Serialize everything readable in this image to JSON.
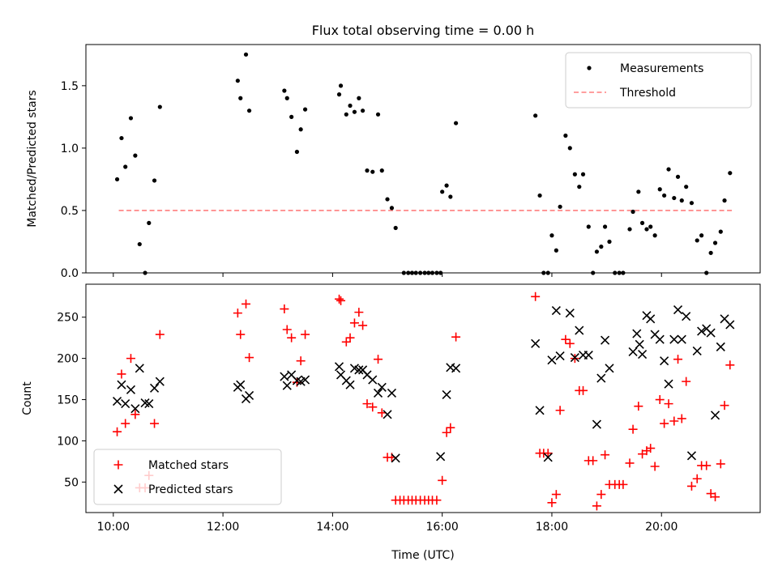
{
  "title": "Flux total observing time = 0.00 h",
  "colors": {
    "measurement": "#000000",
    "threshold": "#ff7f7f",
    "matched": "#ff0000",
    "predicted": "#000000",
    "frame": "#000000"
  },
  "chart_data": [
    {
      "type": "scatter",
      "ylabel": "Matched/Predicted stars",
      "xlim_hours": [
        9.5,
        21.8
      ],
      "ylim": [
        0,
        1.83
      ],
      "yticks": [
        0.0,
        0.5,
        1.0,
        1.5
      ],
      "ytick_labels": [
        "0.0",
        "0.5",
        "1.0",
        "1.5"
      ],
      "xtick_labels_hidden": true,
      "legend": {
        "position": "upper right",
        "entries": [
          "Measurements",
          "Threshold"
        ]
      },
      "threshold": {
        "name": "Threshold",
        "value": 0.5,
        "x_start_hours": 10.1,
        "x_end_hours": 21.3,
        "style": "dashed"
      },
      "series": [
        {
          "name": "Measurements",
          "marker": "dot",
          "points": [
            [
              10.07,
              0.75
            ],
            [
              10.15,
              1.08
            ],
            [
              10.22,
              0.85
            ],
            [
              10.32,
              1.24
            ],
            [
              10.4,
              0.94
            ],
            [
              10.48,
              0.23
            ],
            [
              10.58,
              0.0
            ],
            [
              10.65,
              0.4
            ],
            [
              10.75,
              0.74
            ],
            [
              10.85,
              1.33
            ],
            [
              12.27,
              1.54
            ],
            [
              12.32,
              1.4
            ],
            [
              12.42,
              1.75
            ],
            [
              12.48,
              1.3
            ],
            [
              13.12,
              1.46
            ],
            [
              13.17,
              1.4
            ],
            [
              13.25,
              1.25
            ],
            [
              13.35,
              0.97
            ],
            [
              13.42,
              1.15
            ],
            [
              13.5,
              1.31
            ],
            [
              14.12,
              1.43
            ],
            [
              14.15,
              1.5
            ],
            [
              14.25,
              1.27
            ],
            [
              14.32,
              1.34
            ],
            [
              14.4,
              1.29
            ],
            [
              14.48,
              1.4
            ],
            [
              14.55,
              1.3
            ],
            [
              14.63,
              0.82
            ],
            [
              14.73,
              0.81
            ],
            [
              14.83,
              1.27
            ],
            [
              14.9,
              0.82
            ],
            [
              15.0,
              0.59
            ],
            [
              15.08,
              0.52
            ],
            [
              15.15,
              0.36
            ],
            [
              15.3,
              0.0
            ],
            [
              15.38,
              0.0
            ],
            [
              15.45,
              0.0
            ],
            [
              15.52,
              0.0
            ],
            [
              15.6,
              0.0
            ],
            [
              15.68,
              0.0
            ],
            [
              15.75,
              0.0
            ],
            [
              15.82,
              0.0
            ],
            [
              15.9,
              0.0
            ],
            [
              15.97,
              0.0
            ],
            [
              16.0,
              0.65
            ],
            [
              16.08,
              0.7
            ],
            [
              16.15,
              0.61
            ],
            [
              16.25,
              1.2
            ],
            [
              17.7,
              1.26
            ],
            [
              17.78,
              0.62
            ],
            [
              17.85,
              0.0
            ],
            [
              17.93,
              0.0
            ],
            [
              18.0,
              0.3
            ],
            [
              18.08,
              0.18
            ],
            [
              18.15,
              0.53
            ],
            [
              18.25,
              1.1
            ],
            [
              18.33,
              1.0
            ],
            [
              18.42,
              0.79
            ],
            [
              18.5,
              0.69
            ],
            [
              18.57,
              0.79
            ],
            [
              18.67,
              0.37
            ],
            [
              18.75,
              0.0
            ],
            [
              18.82,
              0.17
            ],
            [
              18.9,
              0.21
            ],
            [
              18.97,
              0.37
            ],
            [
              19.05,
              0.25
            ],
            [
              19.15,
              0.0
            ],
            [
              19.23,
              0.0
            ],
            [
              19.3,
              0.0
            ],
            [
              19.42,
              0.35
            ],
            [
              19.48,
              0.49
            ],
            [
              19.58,
              0.65
            ],
            [
              19.65,
              0.4
            ],
            [
              19.73,
              0.35
            ],
            [
              19.8,
              0.37
            ],
            [
              19.88,
              0.3
            ],
            [
              19.97,
              0.67
            ],
            [
              20.05,
              0.62
            ],
            [
              20.13,
              0.83
            ],
            [
              20.23,
              0.6
            ],
            [
              20.3,
              0.77
            ],
            [
              20.37,
              0.58
            ],
            [
              20.45,
              0.69
            ],
            [
              20.55,
              0.56
            ],
            [
              20.65,
              0.26
            ],
            [
              20.73,
              0.3
            ],
            [
              20.82,
              0.0
            ],
            [
              20.9,
              0.16
            ],
            [
              20.98,
              0.24
            ],
            [
              21.08,
              0.33
            ],
            [
              21.15,
              0.58
            ],
            [
              21.25,
              0.8
            ]
          ]
        }
      ]
    },
    {
      "type": "scatter",
      "xlabel": "Time (UTC)",
      "ylabel": "Count",
      "xlim_hours": [
        9.5,
        21.8
      ],
      "ylim": [
        13,
        290
      ],
      "yticks": [
        50,
        100,
        150,
        200,
        250
      ],
      "ytick_labels": [
        "50",
        "100",
        "150",
        "200",
        "250"
      ],
      "xticks_hours": [
        10,
        12,
        14,
        16,
        18,
        20
      ],
      "xtick_labels": [
        "10:00",
        "12:00",
        "14:00",
        "16:00",
        "18:00",
        "20:00"
      ],
      "legend": {
        "position": "lower left",
        "entries": [
          "Matched stars",
          "Predicted stars"
        ]
      },
      "series": [
        {
          "name": "Matched stars",
          "marker": "plus",
          "points": [
            [
              10.07,
              111
            ],
            [
              10.15,
              181
            ],
            [
              10.22,
              121
            ],
            [
              10.32,
              200
            ],
            [
              10.4,
              132
            ],
            [
              10.48,
              43
            ],
            [
              10.58,
              43
            ],
            [
              10.65,
              58
            ],
            [
              10.75,
              121
            ],
            [
              10.85,
              229
            ],
            [
              12.27,
              255
            ],
            [
              12.32,
              229
            ],
            [
              12.42,
              266
            ],
            [
              12.48,
              201
            ],
            [
              13.12,
              260
            ],
            [
              13.17,
              235
            ],
            [
              13.25,
              225
            ],
            [
              13.35,
              171
            ],
            [
              13.42,
              197
            ],
            [
              13.5,
              229
            ],
            [
              14.12,
              272
            ],
            [
              14.15,
              270
            ],
            [
              14.25,
              220
            ],
            [
              14.32,
              225
            ],
            [
              14.4,
              243
            ],
            [
              14.48,
              256
            ],
            [
              14.55,
              240
            ],
            [
              14.63,
              145
            ],
            [
              14.73,
              141
            ],
            [
              14.83,
              199
            ],
            [
              14.9,
              134
            ],
            [
              15.0,
              80
            ],
            [
              15.08,
              80
            ],
            [
              15.15,
              28
            ],
            [
              15.23,
              28
            ],
            [
              15.3,
              28
            ],
            [
              15.38,
              28
            ],
            [
              15.45,
              28
            ],
            [
              15.52,
              28
            ],
            [
              15.6,
              28
            ],
            [
              15.68,
              28
            ],
            [
              15.75,
              28
            ],
            [
              15.82,
              28
            ],
            [
              15.9,
              28
            ],
            [
              16.0,
              52
            ],
            [
              16.08,
              110
            ],
            [
              16.15,
              116
            ],
            [
              16.25,
              226
            ],
            [
              17.7,
              275
            ],
            [
              17.78,
              85
            ],
            [
              17.85,
              85
            ],
            [
              17.93,
              85
            ],
            [
              18.0,
              25
            ],
            [
              18.08,
              35
            ],
            [
              18.15,
              137
            ],
            [
              18.25,
              223
            ],
            [
              18.33,
              218
            ],
            [
              18.42,
              200
            ],
            [
              18.5,
              161
            ],
            [
              18.57,
              161
            ],
            [
              18.67,
              76
            ],
            [
              18.75,
              76
            ],
            [
              18.82,
              21
            ],
            [
              18.9,
              35
            ],
            [
              18.97,
              83
            ],
            [
              19.05,
              47
            ],
            [
              19.15,
              47
            ],
            [
              19.23,
              47
            ],
            [
              19.3,
              47
            ],
            [
              19.42,
              73
            ],
            [
              19.48,
              114
            ],
            [
              19.58,
              142
            ],
            [
              19.65,
              84
            ],
            [
              19.73,
              88
            ],
            [
              19.8,
              91
            ],
            [
              19.88,
              69
            ],
            [
              19.97,
              150
            ],
            [
              20.05,
              121
            ],
            [
              20.13,
              145
            ],
            [
              20.23,
              124
            ],
            [
              20.3,
              199
            ],
            [
              20.37,
              127
            ],
            [
              20.45,
              172
            ],
            [
              20.55,
              45
            ],
            [
              20.65,
              54
            ],
            [
              20.73,
              70
            ],
            [
              20.82,
              70
            ],
            [
              20.9,
              36
            ],
            [
              20.98,
              32
            ],
            [
              21.08,
              72
            ],
            [
              21.15,
              143
            ],
            [
              21.25,
              192
            ]
          ]
        },
        {
          "name": "Predicted stars",
          "marker": "x",
          "points": [
            [
              10.07,
              148
            ],
            [
              10.15,
              168
            ],
            [
              10.22,
              145
            ],
            [
              10.32,
              162
            ],
            [
              10.4,
              139
            ],
            [
              10.48,
              188
            ],
            [
              10.58,
              146
            ],
            [
              10.65,
              145
            ],
            [
              10.75,
              164
            ],
            [
              10.85,
              172
            ],
            [
              12.27,
              165
            ],
            [
              12.32,
              168
            ],
            [
              12.42,
              151
            ],
            [
              12.48,
              155
            ],
            [
              13.12,
              178
            ],
            [
              13.17,
              167
            ],
            [
              13.25,
              180
            ],
            [
              13.35,
              173
            ],
            [
              13.42,
              172
            ],
            [
              13.5,
              174
            ],
            [
              14.12,
              190
            ],
            [
              14.15,
              180
            ],
            [
              14.25,
              173
            ],
            [
              14.32,
              168
            ],
            [
              14.4,
              188
            ],
            [
              14.48,
              186
            ],
            [
              14.55,
              186
            ],
            [
              14.63,
              180
            ],
            [
              14.73,
              174
            ],
            [
              14.83,
              158
            ],
            [
              14.9,
              165
            ],
            [
              15.0,
              132
            ],
            [
              15.08,
              158
            ],
            [
              15.15,
              79
            ],
            [
              15.97,
              81
            ],
            [
              16.08,
              156
            ],
            [
              16.15,
              189
            ],
            [
              16.25,
              188
            ],
            [
              17.7,
              218
            ],
            [
              17.78,
              137
            ],
            [
              17.93,
              80
            ],
            [
              18.0,
              198
            ],
            [
              18.08,
              258
            ],
            [
              18.15,
              203
            ],
            [
              18.33,
              255
            ],
            [
              18.42,
              201
            ],
            [
              18.5,
              234
            ],
            [
              18.57,
              204
            ],
            [
              18.67,
              204
            ],
            [
              18.82,
              120
            ],
            [
              18.9,
              176
            ],
            [
              18.97,
              222
            ],
            [
              19.05,
              188
            ],
            [
              19.48,
              208
            ],
            [
              19.55,
              230
            ],
            [
              19.6,
              217
            ],
            [
              19.65,
              205
            ],
            [
              19.73,
              252
            ],
            [
              19.8,
              248
            ],
            [
              19.88,
              229
            ],
            [
              19.97,
              223
            ],
            [
              20.05,
              197
            ],
            [
              20.13,
              169
            ],
            [
              20.23,
              223
            ],
            [
              20.3,
              259
            ],
            [
              20.37,
              223
            ],
            [
              20.45,
              251
            ],
            [
              20.55,
              82
            ],
            [
              20.65,
              209
            ],
            [
              20.73,
              233
            ],
            [
              20.82,
              236
            ],
            [
              20.9,
              231
            ],
            [
              20.98,
              131
            ],
            [
              21.08,
              214
            ],
            [
              21.15,
              248
            ],
            [
              21.25,
              241
            ]
          ]
        }
      ]
    }
  ]
}
